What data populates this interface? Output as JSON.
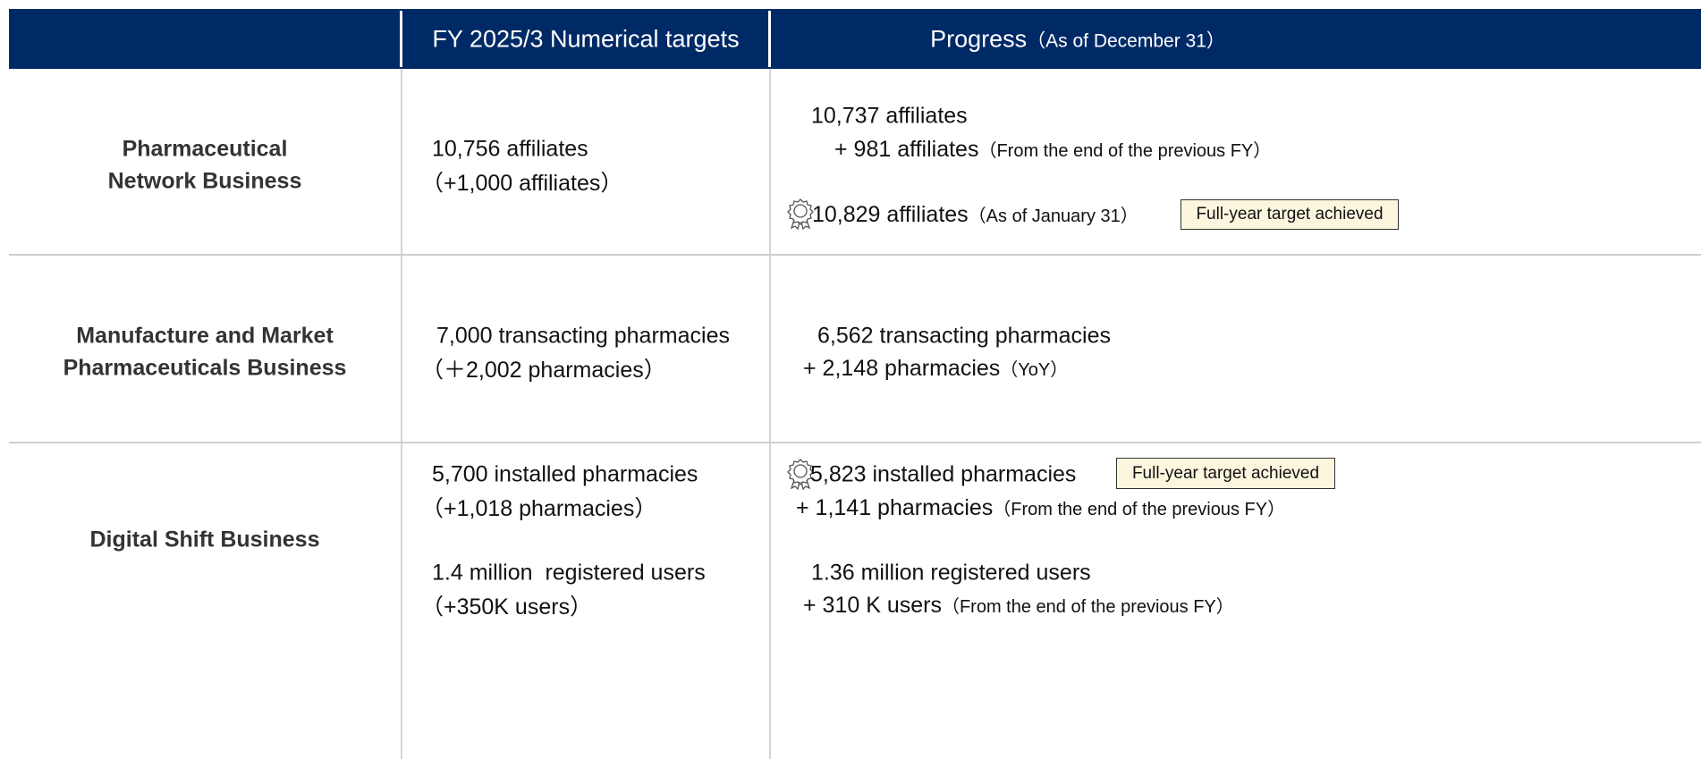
{
  "table": {
    "header": [
      "FY 2025/3 Numerical targets",
      "Progress",
      "（As of December 31）"
    ],
    "rows": [
      {
        "label": [
          "Pharmaceutical",
          "Network Business"
        ],
        "targets": [
          "10,756 affiliates",
          "（+1,000 affiliates）"
        ],
        "progress": [
          {
            "text": "10,737 affiliates"
          },
          {
            "text": "+ 981 affiliates",
            "note": "（From the end of the previous FY）"
          },
          {
            "text": "10,829 affiliates",
            "note": "（As of January 31）"
          }
        ],
        "badge": "Full-year target achieved"
      },
      {
        "label": [
          "Manufacture and Market",
          "Pharmaceuticals Business"
        ],
        "targets": [
          "7,000 transacting pharmacies",
          "（＋2,002 pharmacies）"
        ],
        "progress": [
          {
            "text": "6,562 transacting pharmacies"
          },
          {
            "text": "+ 2,148 pharmacies",
            "note": "（YoY）"
          }
        ]
      },
      {
        "label": [
          "Digital Shift Business"
        ],
        "targets": [
          "5,700 installed pharmacies",
          "（+1,018 pharmacies）",
          "1.4 million  registered users",
          "（+350K users）"
        ],
        "progress": [
          {
            "text": "5,823 installed pharmacies"
          },
          {
            "text": "+ 1,141 pharmacies",
            "note": "（From the end of the previous FY）"
          },
          {
            "text": "1.36 million registered users"
          },
          {
            "text": "+ 310 K users",
            "note": "（From the end of the previous FY）"
          }
        ],
        "badge": "Full-year target achieved"
      }
    ]
  }
}
